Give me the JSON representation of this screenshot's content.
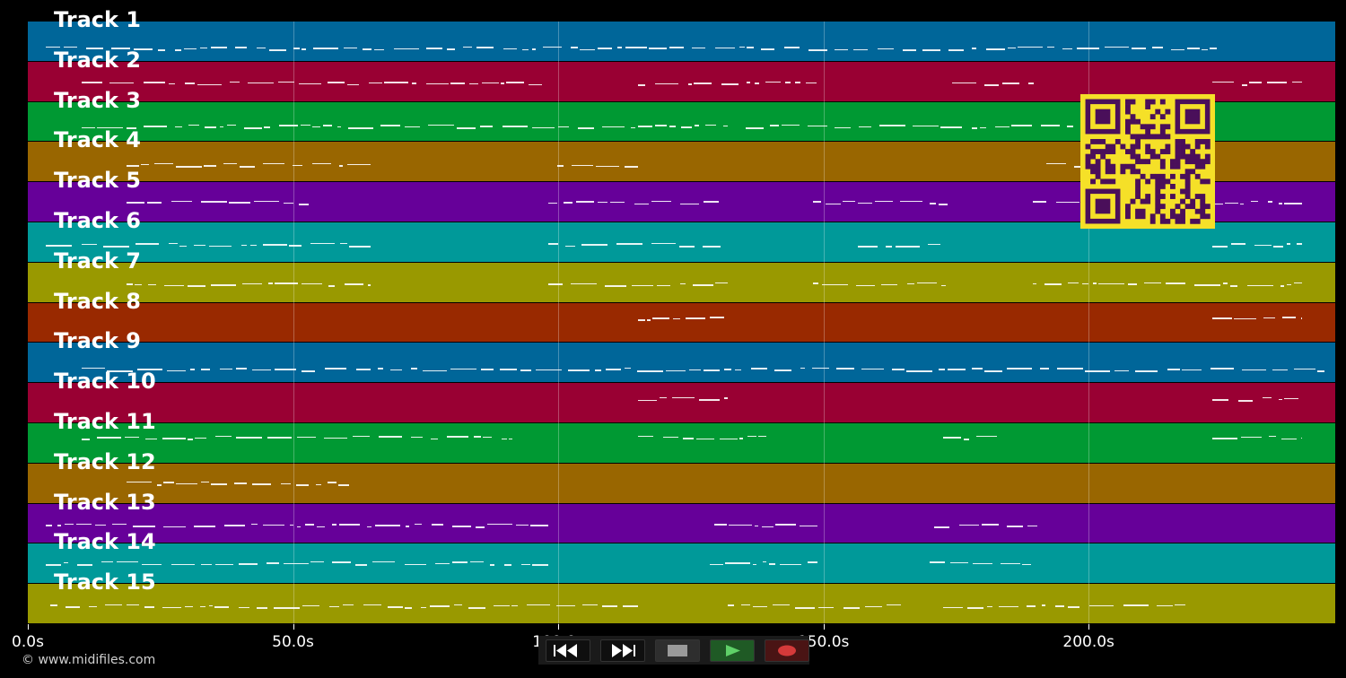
{
  "tracks": [
    {
      "name": "Track 1",
      "color": "#006699"
    },
    {
      "name": "Track 2",
      "color": "#990033"
    },
    {
      "name": "Track 3",
      "color": "#009933"
    },
    {
      "name": "Track 4",
      "color": "#996600"
    },
    {
      "name": "Track 5",
      "color": "#660099"
    },
    {
      "name": "Track 6",
      "color": "#009999"
    },
    {
      "name": "Track 7",
      "color": "#999900"
    },
    {
      "name": "Track 8",
      "color": "#992900"
    },
    {
      "name": "Track 9",
      "color": "#006699"
    },
    {
      "name": "Track 10",
      "color": "#990033"
    },
    {
      "name": "Track 11",
      "color": "#009933"
    },
    {
      "name": "Track 12",
      "color": "#996600"
    },
    {
      "name": "Track 13",
      "color": "#660099"
    },
    {
      "name": "Track 14",
      "color": "#009999"
    },
    {
      "name": "Track 15",
      "color": "#999900"
    }
  ],
  "timeline": {
    "max_seconds": 246.5,
    "ticks": [
      "0.0s",
      "50.0s",
      "100.0s",
      "150.0s",
      "200.0s"
    ],
    "tick_values": [
      0,
      50,
      100,
      150,
      200
    ]
  },
  "copyright": "© www.midifiles.com",
  "controls": {
    "rewind": {
      "icon": "rewind-icon",
      "color": "#0f0f0f"
    },
    "fast_forward": {
      "icon": "fast-forward-icon",
      "color": "#0f0f0f"
    },
    "stop": {
      "icon": "stop-icon",
      "color": "#2e2e2e"
    },
    "play": {
      "icon": "play-icon",
      "color": "#1f5a25"
    },
    "record": {
      "icon": "record-icon",
      "color": "#4a1414"
    }
  },
  "qr_code": {
    "icon": "qr-code-icon",
    "fg": "#4a0f5a",
    "bg": "#f5e028"
  }
}
